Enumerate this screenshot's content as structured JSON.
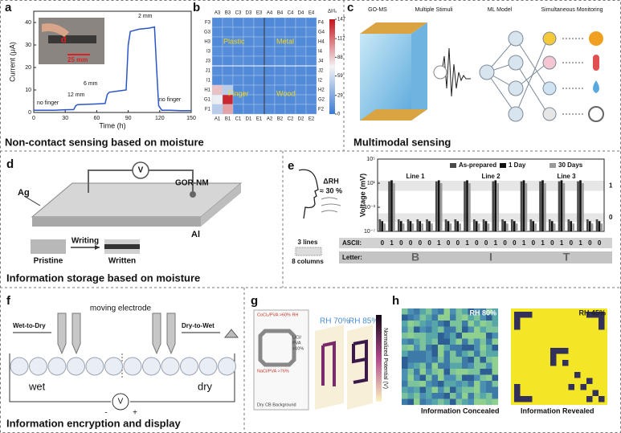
{
  "panels": {
    "a": {
      "label": "a",
      "caption": "Non-contact sensing based on moisture",
      "inset_d": "d",
      "inset_scale": "25 mm",
      "chart": {
        "type": "line",
        "x_label": "Time (h)",
        "y_label": "Current (μA)",
        "color": "#2b55c7",
        "x": [
          0,
          5,
          10,
          20,
          30,
          38,
          40,
          42,
          50,
          60,
          68,
          70,
          72,
          80,
          88,
          90,
          92,
          100,
          110,
          115,
          117,
          119,
          122,
          130,
          140,
          150
        ],
        "values": [
          1,
          1,
          1,
          1,
          1.2,
          1.3,
          3,
          3.5,
          3.6,
          3.8,
          4,
          8,
          9,
          9.5,
          10,
          30,
          36,
          37,
          37.5,
          38,
          20,
          3,
          1,
          1,
          0.8,
          0.8
        ],
        "xlim": [
          0,
          150
        ],
        "xticks": [
          0,
          30,
          60,
          90,
          120,
          150
        ],
        "ylim": [
          0,
          45
        ],
        "yticks": [
          0,
          10,
          20,
          30,
          40
        ],
        "annotations": [
          "no finger",
          "12 mm",
          "6 mm",
          "2 mm",
          "no finger"
        ]
      }
    },
    "b": {
      "label": "b",
      "type": "heatmap",
      "colorbar_label": "ΔI/I₀",
      "cols_top": [
        "A3",
        "B3",
        "C3",
        "D3",
        "E3",
        "A4",
        "B4",
        "C4",
        "D4",
        "E4"
      ],
      "cols_bottom": [
        "A1",
        "B1",
        "C1",
        "D1",
        "E1",
        "A2",
        "B2",
        "C2",
        "D2",
        "E2"
      ],
      "rows_left": [
        "F3",
        "G3",
        "H3",
        "I3",
        "J3",
        "J1",
        "I1",
        "H1",
        "G1",
        "F1"
      ],
      "rows_right": [
        "F4",
        "G4",
        "H4",
        "I4",
        "J4",
        "J2",
        "I2",
        "H2",
        "G2",
        "F2"
      ],
      "quadrants": [
        "Plastic",
        "Metal",
        "Finger",
        "Wood"
      ],
      "values": [
        [
          10,
          12,
          9,
          11,
          10,
          8,
          9,
          10,
          11,
          9
        ],
        [
          11,
          9,
          10,
          12,
          9,
          10,
          11,
          9,
          10,
          12
        ],
        [
          9,
          10,
          11,
          10,
          12,
          9,
          10,
          11,
          9,
          10
        ],
        [
          12,
          11,
          9,
          10,
          10,
          11,
          9,
          10,
          12,
          9
        ],
        [
          10,
          9,
          12,
          11,
          9,
          10,
          12,
          9,
          10,
          11
        ],
        [
          11,
          10,
          10,
          9,
          12,
          9,
          10,
          11,
          10,
          9
        ],
        [
          9,
          12,
          11,
          10,
          9,
          10,
          11,
          12,
          9,
          10
        ],
        [
          90,
          50,
          10,
          11,
          10,
          12,
          9,
          10,
          11,
          10
        ],
        [
          70,
          140,
          12,
          9,
          11,
          10,
          10,
          9,
          12,
          11
        ],
        [
          50,
          100,
          9,
          10,
          12,
          11,
          9,
          10,
          9,
          10
        ]
      ],
      "zlim": [
        0,
        147
      ],
      "zticks": [
        0,
        29,
        59,
        88,
        117,
        147
      ]
    },
    "c": {
      "label": "c",
      "caption": "Multimodal sensing",
      "headers": [
        "GO-MS",
        "Multiple Stimuli",
        "ML Model",
        "Simultaneous Monitoring"
      ]
    },
    "d": {
      "label": "d",
      "caption": "Information storage based on moisture",
      "ag": "Ag",
      "film": "GOR-NM",
      "al": "Al",
      "meter": "V",
      "arrow": "Writing",
      "pristine": "Pristine",
      "written": "Written"
    },
    "e": {
      "label": "e",
      "drh": "ΔRH",
      "drh_value": "≈ 30 %",
      "lines_note": "3 lines",
      "columns_note": "8 columns",
      "ascii_label": "ASCII:",
      "letter_label": "Letter:",
      "letters": [
        "B",
        "I",
        "T"
      ],
      "bits": [
        [
          0,
          1,
          0,
          0,
          0,
          0,
          1,
          0
        ],
        [
          0,
          1,
          0,
          0,
          1,
          0,
          0,
          1
        ],
        [
          0,
          1,
          0,
          1,
          0,
          1,
          0,
          0
        ]
      ],
      "band_labels": [
        "1",
        "0"
      ],
      "chart": {
        "type": "bar",
        "y_label": "Voltage (mV)",
        "log": true,
        "line_labels": [
          "Line 1",
          "Line 2",
          "Line 3"
        ],
        "ylim": [
          1e-07,
          100000
        ],
        "yticks": [
          {
            "value": 1e-07,
            "label": "10⁻⁷"
          },
          {
            "value": 0.001,
            "label": "10⁻³"
          },
          {
            "value": 10,
            "label": "10¹"
          },
          {
            "value": 100000,
            "label": "10⁵"
          }
        ],
        "series": [
          {
            "name": "As-prepared",
            "color": "#4a4a4a",
            "values": [
              1e-05,
              20,
              1e-05,
              1e-05,
              1e-05,
              1e-05,
              20,
              1e-05,
              1e-05,
              20,
              1e-05,
              1e-05,
              20,
              1e-05,
              1e-05,
              20,
              1e-05,
              20,
              1e-05,
              20,
              1e-05,
              20,
              1e-05,
              1e-05
            ]
          },
          {
            "name": "1 Day",
            "color": "#111111",
            "values": [
              5e-06,
              30,
              5e-06,
              5e-06,
              5e-06,
              5e-06,
              30,
              5e-06,
              5e-06,
              30,
              5e-06,
              5e-06,
              30,
              5e-06,
              5e-06,
              30,
              5e-06,
              30,
              5e-06,
              30,
              5e-06,
              30,
              5e-06,
              5e-06
            ]
          },
          {
            "name": "30 Days",
            "color": "#9a9a9a",
            "values": [
              2e-06,
              10,
              2e-06,
              2e-06,
              2e-06,
              2e-06,
              10,
              2e-06,
              2e-06,
              10,
              2e-06,
              2e-06,
              10,
              2e-06,
              2e-06,
              10,
              2e-06,
              10,
              2e-06,
              10,
              2e-06,
              10,
              2e-06,
              2e-06
            ]
          }
        ]
      }
    },
    "f": {
      "label": "f",
      "caption": "Information encryption and display",
      "title": "moving electrode",
      "left_arrow": "Wet-to-Dry",
      "right_arrow": "Dry-to-Wet",
      "wet": "wet",
      "dry": "dry",
      "meter": "V",
      "minus": "-",
      "plus": "+"
    },
    "g": {
      "label": "g",
      "legend": [
        [
          "CoCl₂/PVA >60% RH"
        ],
        [
          "LiCl/",
          "PVA",
          ">10%"
        ],
        [
          "NaCl/PVA >76%"
        ],
        [
          "Dry CB Background"
        ]
      ],
      "rh1": "RH 70%",
      "rh2": "RH 85%",
      "colorbar_label": "Normalized Potential (V)"
    },
    "h": {
      "label": "h",
      "rh1": "RH 80%",
      "rh2": "RH 45%",
      "caption1": "Information Concealed",
      "caption2": "Information Revealed"
    }
  }
}
